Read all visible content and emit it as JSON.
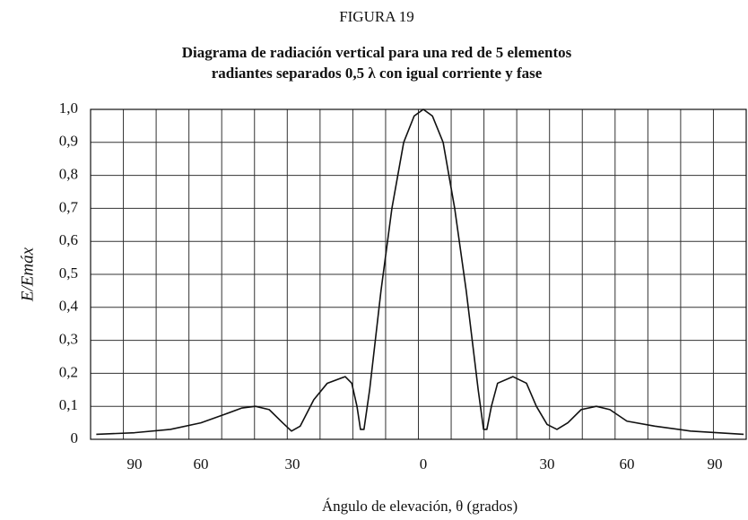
{
  "chart_data": {
    "type": "line",
    "figure_label": "FIGURA 19",
    "title": [
      "Diagrama de radiación vertical para una red de 5 elementos",
      "radiantes separados 0,5 λ con igual corriente y fase"
    ],
    "xlabel": "Ángulo de elevación,  θ  (grados)",
    "ylabel": "E/Emáx",
    "xlim": [
      -110,
      101
    ],
    "xticks": [
      {
        "value": -90,
        "label": "90"
      },
      {
        "value": -60,
        "label": "60"
      },
      {
        "value": -30,
        "label": "30"
      },
      0,
      30,
      {
        "value": 60,
        "label": "60"
      },
      {
        "value": 90,
        "label": "90"
      }
    ],
    "ylim": [
      0,
      1
    ],
    "yticks": [
      0,
      {
        "value": 0.1,
        "label": "0,1"
      },
      {
        "value": 0.2,
        "label": "0,2"
      },
      {
        "value": 0.3,
        "label": "0,3"
      },
      {
        "value": 0.4,
        "label": "0,4"
      },
      {
        "value": 0.5,
        "label": "0,5"
      },
      {
        "value": 0.6,
        "label": "0,6"
      },
      {
        "value": 0.7,
        "label": "0,7"
      },
      {
        "value": 0.8,
        "label": "0,8"
      },
      {
        "value": 0.9,
        "label": "0,9"
      },
      {
        "value": 1,
        "label": "1,0"
      }
    ],
    "grid": true,
    "series": [
      {
        "color": "#111111",
        "x": [
          -107.4,
          -90,
          -73.8,
          -60,
          -52.4,
          -46.5,
          -42.1,
          -37.6,
          -33.2,
          -30.3,
          -28.2,
          -25.1,
          -22.0,
          -17.9,
          -16.4,
          -15.2,
          -14.4,
          -13.6,
          -12.3,
          -9.7,
          -7.2,
          -4.5,
          -2.1,
          0,
          2.2,
          4.8,
          7.6,
          10.4,
          13.3,
          14.6,
          15.4,
          16.5,
          18.0,
          21.7,
          25.0,
          27.4,
          30,
          33.7,
          37.8,
          42.8,
          48.5,
          53.6,
          60,
          69.5,
          81.7,
          100.1
        ],
        "values": [
          0.015,
          0.02,
          0.03,
          0.05,
          0.075,
          0.095,
          0.1,
          0.09,
          0.05,
          0.025,
          0.04,
          0.12,
          0.17,
          0.19,
          0.17,
          0.1,
          0.03,
          0.03,
          0.15,
          0.45,
          0.7,
          0.9,
          0.98,
          1.0,
          0.98,
          0.9,
          0.7,
          0.45,
          0.15,
          0.03,
          0.03,
          0.1,
          0.17,
          0.19,
          0.17,
          0.1,
          0.045,
          0.03,
          0.05,
          0.09,
          0.1,
          0.09,
          0.055,
          0.04,
          0.025,
          0.015
        ]
      }
    ]
  }
}
